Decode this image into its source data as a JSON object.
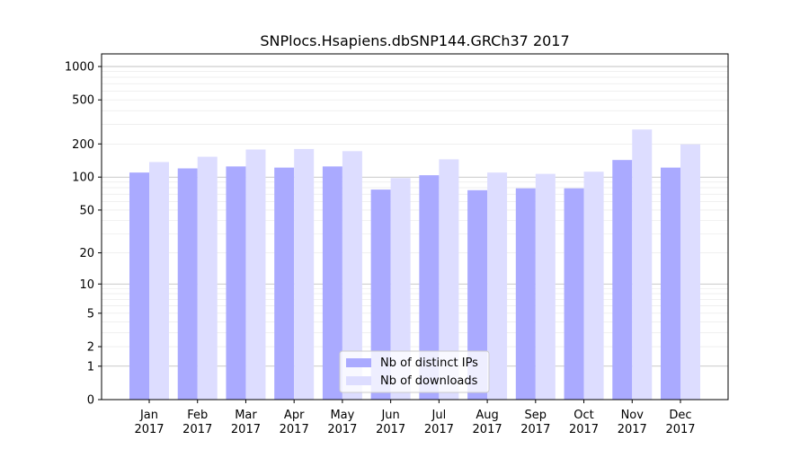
{
  "chart_data": {
    "type": "bar",
    "title": "SNPlocs.Hsapiens.dbSNP144.GRCh37 2017",
    "xlabel": "",
    "ylabel": "",
    "categories": [
      [
        "Jan",
        "2017"
      ],
      [
        "Feb",
        "2017"
      ],
      [
        "Mar",
        "2017"
      ],
      [
        "Apr",
        "2017"
      ],
      [
        "May",
        "2017"
      ],
      [
        "Jun",
        "2017"
      ],
      [
        "Jul",
        "2017"
      ],
      [
        "Aug",
        "2017"
      ],
      [
        "Sep",
        "2017"
      ],
      [
        "Oct",
        "2017"
      ],
      [
        "Nov",
        "2017"
      ],
      [
        "Dec",
        "2017"
      ]
    ],
    "series": [
      {
        "name": "Nb of distinct IPs",
        "color": "#aaaaff",
        "values": [
          110,
          120,
          125,
          122,
          125,
          77,
          104,
          76,
          79,
          79,
          143,
          122
        ]
      },
      {
        "name": "Nb of downloads",
        "color": "#ddddff",
        "values": [
          137,
          153,
          178,
          180,
          172,
          98,
          145,
          110,
          107,
          112,
          270,
          198
        ]
      }
    ],
    "yscale": "log(1+y)",
    "ylim": [
      0,
      1300
    ],
    "yticks": [
      0,
      1,
      2,
      5,
      10,
      20,
      50,
      100,
      200,
      500,
      1000
    ],
    "grid": true,
    "legend_position": "bottom-center"
  }
}
